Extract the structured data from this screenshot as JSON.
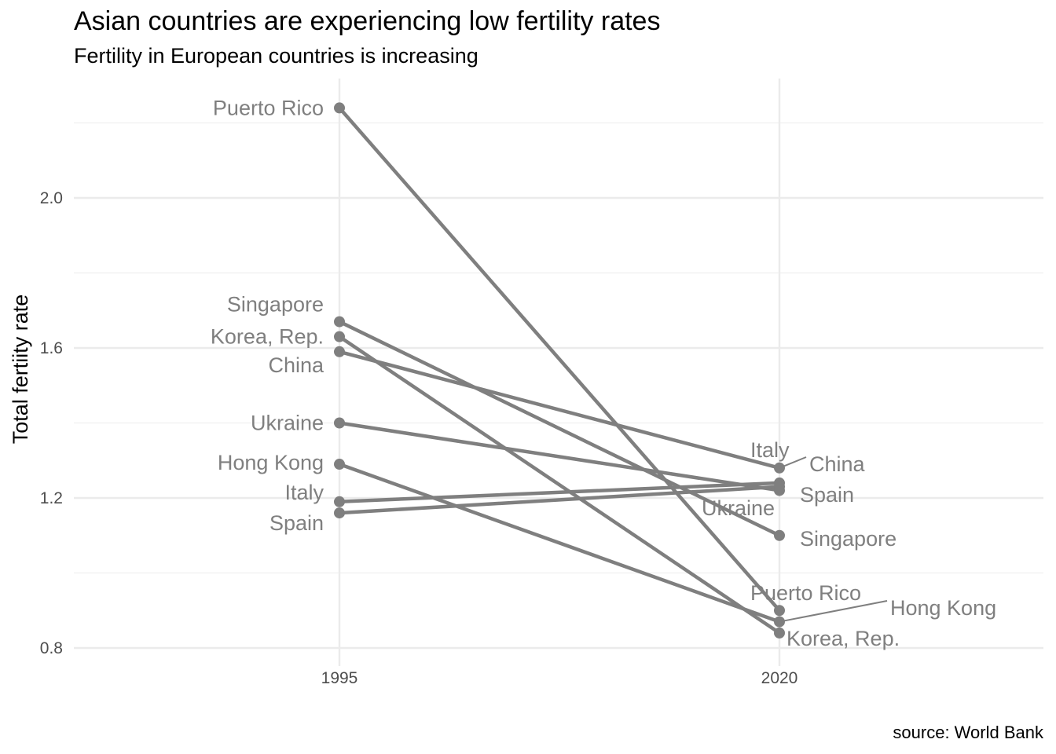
{
  "chart_data": {
    "type": "line",
    "title": "Asian countries are experiencing low fertility rates",
    "subtitle": "Fertility in European countries is increasing",
    "xlabel": "",
    "ylabel": "Total fertiity rate",
    "caption": "source: World Bank",
    "categories": [
      "1995",
      "2020"
    ],
    "yticks": [
      "0.8",
      "1.2",
      "1.6",
      "2.0"
    ],
    "ylim": [
      0.8,
      2.25
    ],
    "grid": true,
    "legend": "none",
    "series": [
      {
        "name": "Puerto Rico",
        "values": [
          2.24,
          0.9
        ]
      },
      {
        "name": "Singapore",
        "values": [
          1.67,
          1.1
        ]
      },
      {
        "name": "Korea, Rep.",
        "values": [
          1.63,
          0.84
        ]
      },
      {
        "name": "China",
        "values": [
          1.59,
          1.28
        ]
      },
      {
        "name": "Ukraine",
        "values": [
          1.4,
          1.22
        ]
      },
      {
        "name": "Hong Kong",
        "values": [
          1.29,
          0.87
        ]
      },
      {
        "name": "Italy",
        "values": [
          1.19,
          1.24
        ]
      },
      {
        "name": "Spain",
        "values": [
          1.16,
          1.23
        ]
      }
    ],
    "color": "#7f7f7f"
  }
}
